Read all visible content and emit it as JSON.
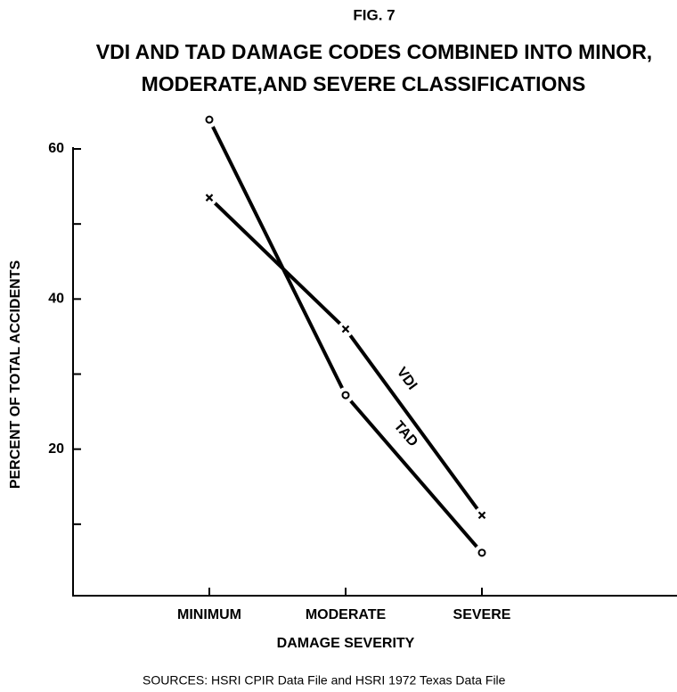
{
  "chart_data": {
    "type": "line",
    "figure_label": "FIG. 7",
    "title": [
      "VDI AND TAD DAMAGE CODES COMBINED INTO MINOR,",
      "MODERATE,AND SEVERE CLASSIFICATIONS"
    ],
    "x_label": "DAMAGE SEVERITY",
    "y_label": "PERCENT OF TOTAL ACCIDENTS",
    "source": "SOURCES:  HSRI CPIR Data File and HSRI 1972 Texas Data File",
    "categories": [
      "MINIMUM",
      "MODERATE",
      "SEVERE"
    ],
    "series": [
      {
        "name": "VDI",
        "color": "#000000",
        "marker": "x",
        "values": [
          53.5,
          36,
          11.2
        ]
      },
      {
        "name": "TAD",
        "color": "#000000",
        "marker": "o",
        "values": [
          63.9,
          27.2,
          6.2
        ]
      }
    ],
    "ylim": [
      0,
      60
    ],
    "yticks": [
      20,
      40,
      60
    ],
    "yminor_ticks": [
      10,
      30,
      50
    ]
  }
}
